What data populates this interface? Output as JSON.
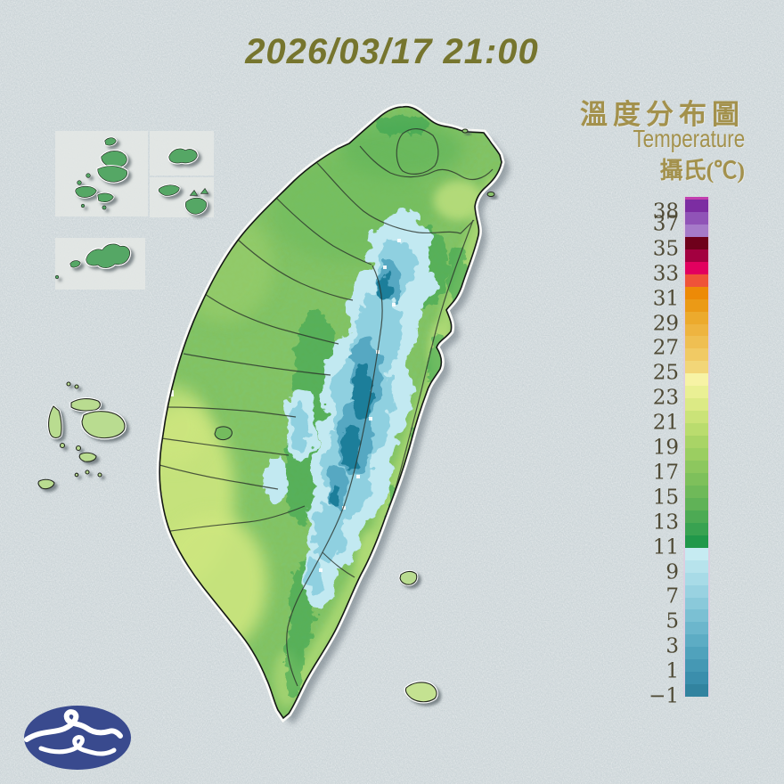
{
  "canvas": {
    "background_color": "#ccd5d8"
  },
  "header": {
    "datetime": "2026/03/17 21:00",
    "color": "#76752e"
  },
  "legend": {
    "title_zh": "溫度分布圖",
    "title_en": "Temperature",
    "unit_label": "攝氏(℃)",
    "text_color": "#a3914c",
    "tick_color": "#4f4a35",
    "scale": {
      "min": -1,
      "max": 39,
      "top_border_color": "#c23fae",
      "side_border_color": "#dccfe0",
      "ticks": [
        {
          "value": 38,
          "label": "38"
        },
        {
          "value": 37,
          "label": "37"
        },
        {
          "value": 35,
          "label": "35"
        },
        {
          "value": 33,
          "label": "33"
        },
        {
          "value": 31,
          "label": "31"
        },
        {
          "value": 29,
          "label": "29"
        },
        {
          "value": 27,
          "label": "27"
        },
        {
          "value": 25,
          "label": "25"
        },
        {
          "value": 23,
          "label": "23"
        },
        {
          "value": 21,
          "label": "21"
        },
        {
          "value": 19,
          "label": "19"
        },
        {
          "value": 17,
          "label": "17"
        },
        {
          "value": 15,
          "label": "15"
        },
        {
          "value": 13,
          "label": "13"
        },
        {
          "value": 11,
          "label": "11"
        },
        {
          "value": 9,
          "label": "9"
        },
        {
          "value": 7,
          "label": "7"
        },
        {
          "value": 5,
          "label": "5"
        },
        {
          "value": 3,
          "label": "3"
        },
        {
          "value": 1,
          "label": "1"
        },
        {
          "value": -1,
          "label": "−1"
        }
      ],
      "colors_top_to_bottom": [
        "#7c2da2",
        "#9053b7",
        "#a67ac9",
        "#6f001b",
        "#a30040",
        "#e2005f",
        "#ef5339",
        "#ed8a07",
        "#eb9a16",
        "#ecaa2d",
        "#eeb440",
        "#efbf52",
        "#f1ca64",
        "#f2d678",
        "#f7f3a5",
        "#eaf094",
        "#dcea85",
        "#cbe378",
        "#badc6e",
        "#a9d466",
        "#9bce61",
        "#8dc75e",
        "#7ec05b",
        "#6fb959",
        "#60b257",
        "#4daa54",
        "#39a251",
        "#21984a",
        "#c6ebf2",
        "#b7e3ec",
        "#a8dbe7",
        "#99d2e1",
        "#8ac9da",
        "#7bc0d3",
        "#6cb6cc",
        "#5dacc4",
        "#50a2bc",
        "#4598b4",
        "#3b8eac",
        "#32839f"
      ]
    }
  },
  "map": {
    "colors": {
      "lowland_green": "#83c261",
      "east_coast_band": "#aeda74",
      "southwest_plain": "#cde67f",
      "mountain_light": "#c2e9f1",
      "mountain_mid": "#8fd0e0",
      "mountain_steel": "#57a8c2",
      "mountain_core": "#1f7e9a",
      "inset_island_green": "#55a765",
      "offshore_island_green": "#b9dc90",
      "coast_outline": "#141814",
      "coast_halo": "#fbfbf8"
    }
  },
  "logo": {
    "bg_color": "#394a8e",
    "swirl_color": "#ffffff"
  }
}
